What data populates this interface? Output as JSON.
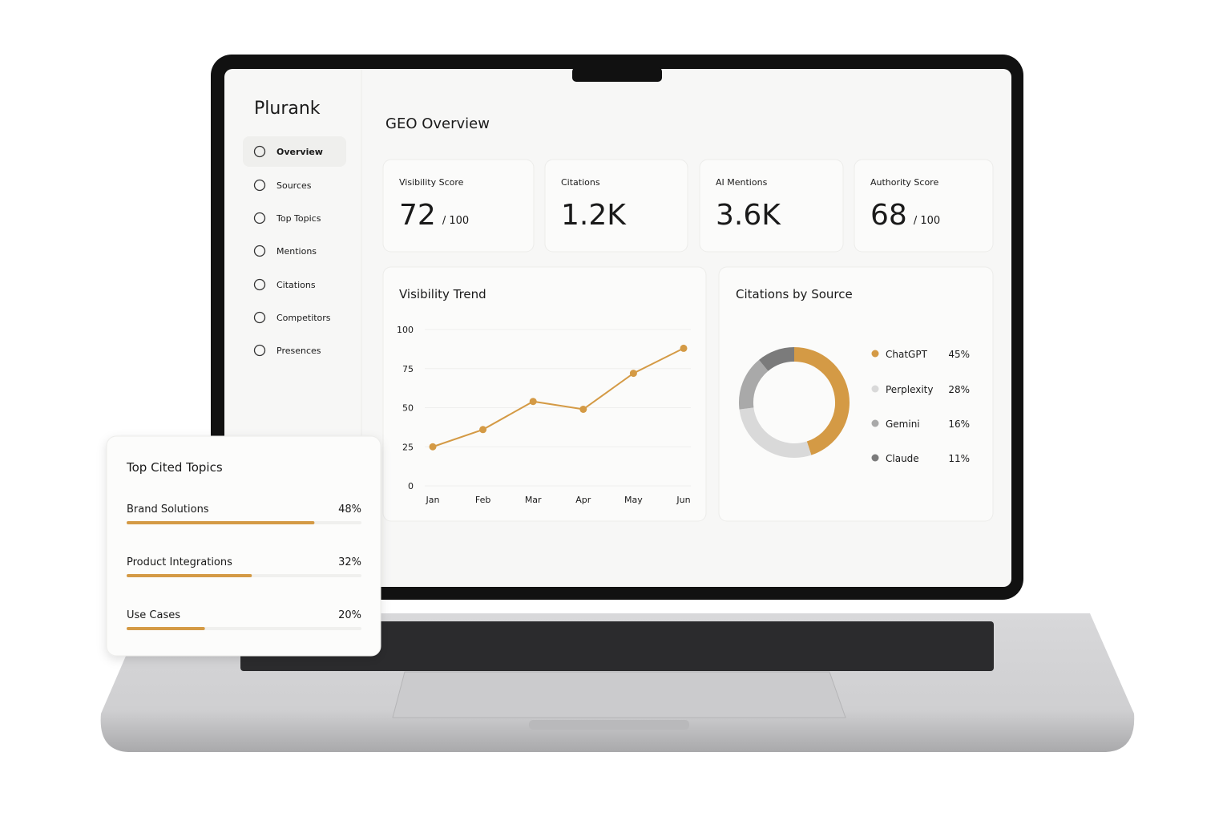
{
  "sidebar": {
    "brand": "Plurank",
    "active": 0,
    "items": [
      "Overview",
      "Sources",
      "Top Topics",
      "Mentions",
      "Citations",
      "Competitors",
      "Presences"
    ]
  },
  "header": {
    "title": "GEO Overview"
  },
  "kpis": [
    {
      "label": "Visibility Score",
      "value": 72,
      "suffix": "/ 100"
    },
    {
      "label": "Citations",
      "value": "1.2K"
    },
    {
      "label": "AI Mentions",
      "value": "3.6K"
    },
    {
      "label": "Authority Score",
      "value": 68,
      "suffix": "/ 100"
    }
  ],
  "visibility_trend": {
    "type": "line",
    "title": "Visibility Trend",
    "categories": [
      "Jan",
      "Feb",
      "Mar",
      "Apr",
      "May",
      "Jun"
    ],
    "values": [
      25,
      36,
      54,
      49,
      72,
      88
    ],
    "ylim": [
      0,
      100
    ],
    "yticks": [
      0,
      25,
      50,
      75,
      100
    ],
    "color": "#d49a45",
    "grid": true
  },
  "citations_by_source": {
    "type": "donut",
    "title": "Citations by Source",
    "categories": [
      "ChatGPT",
      "Perplexity",
      "Gemini",
      "Claude"
    ],
    "values": [
      45,
      28,
      16,
      11
    ],
    "value_labels": [
      "45%",
      "28%",
      "16%",
      "11%"
    ],
    "colors": [
      "#d49a45",
      "#d9d9d9",
      "#a9a9a9",
      "#7b7b7b"
    ]
  },
  "top_cited_topics": {
    "type": "bar",
    "title": "Top Cited Topics",
    "categories": [
      "Brand Solutions",
      "Product Integrations",
      "Use Cases"
    ],
    "values": [
      48,
      32,
      20
    ],
    "value_labels": [
      "48%",
      "32%",
      "20%"
    ],
    "xlim": [
      0,
      60
    ],
    "color": "#d49a45"
  }
}
